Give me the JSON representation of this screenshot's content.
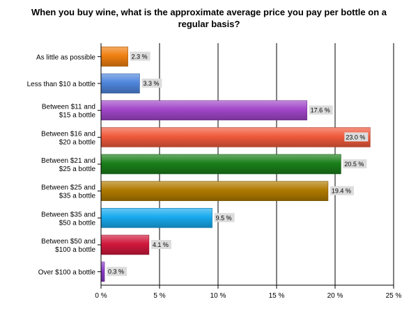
{
  "chart_data": {
    "type": "bar",
    "orientation": "horizontal",
    "title_lines": [
      "When you buy wine, what is the approximate average price you pay per bottle on a",
      "regular basis?"
    ],
    "categories": [
      [
        "As little as possible"
      ],
      [
        "Less than $10 a bottle"
      ],
      [
        "Between $11 and",
        "$15 a bottle"
      ],
      [
        "Between $16 and",
        "$20 a bottle"
      ],
      [
        "Between $21 and",
        "$25 a bottle"
      ],
      [
        "Between $25 and",
        "$35 a bottle"
      ],
      [
        "Between $35 and",
        "$50 a bottle"
      ],
      [
        "Between $50 and",
        "$100 a bottle"
      ],
      [
        "Over $100 a bottle"
      ]
    ],
    "values": [
      2.3,
      3.3,
      17.6,
      23.0,
      20.5,
      19.4,
      9.5,
      4.1,
      0.3
    ],
    "value_labels": [
      "2.3 %",
      "3.3 %",
      "17.6 %",
      "23.0 %",
      "20.5 %",
      "19.4 %",
      "9.5 %",
      "4.1 %",
      "0.3 %"
    ],
    "colors": [
      "#f07f10",
      "#4f86dc",
      "#a046c8",
      "#f05a3c",
      "#1a7f1a",
      "#b07a00",
      "#18aaee",
      "#d0183c",
      "#8a3cc8"
    ],
    "xlim": [
      0,
      25
    ],
    "xticks": [
      0,
      5,
      10,
      15,
      20,
      25
    ],
    "xtick_labels": [
      "0 %",
      "5 %",
      "10 %",
      "15 %",
      "20 %",
      "25 %"
    ],
    "grid": true,
    "legend": "none"
  }
}
